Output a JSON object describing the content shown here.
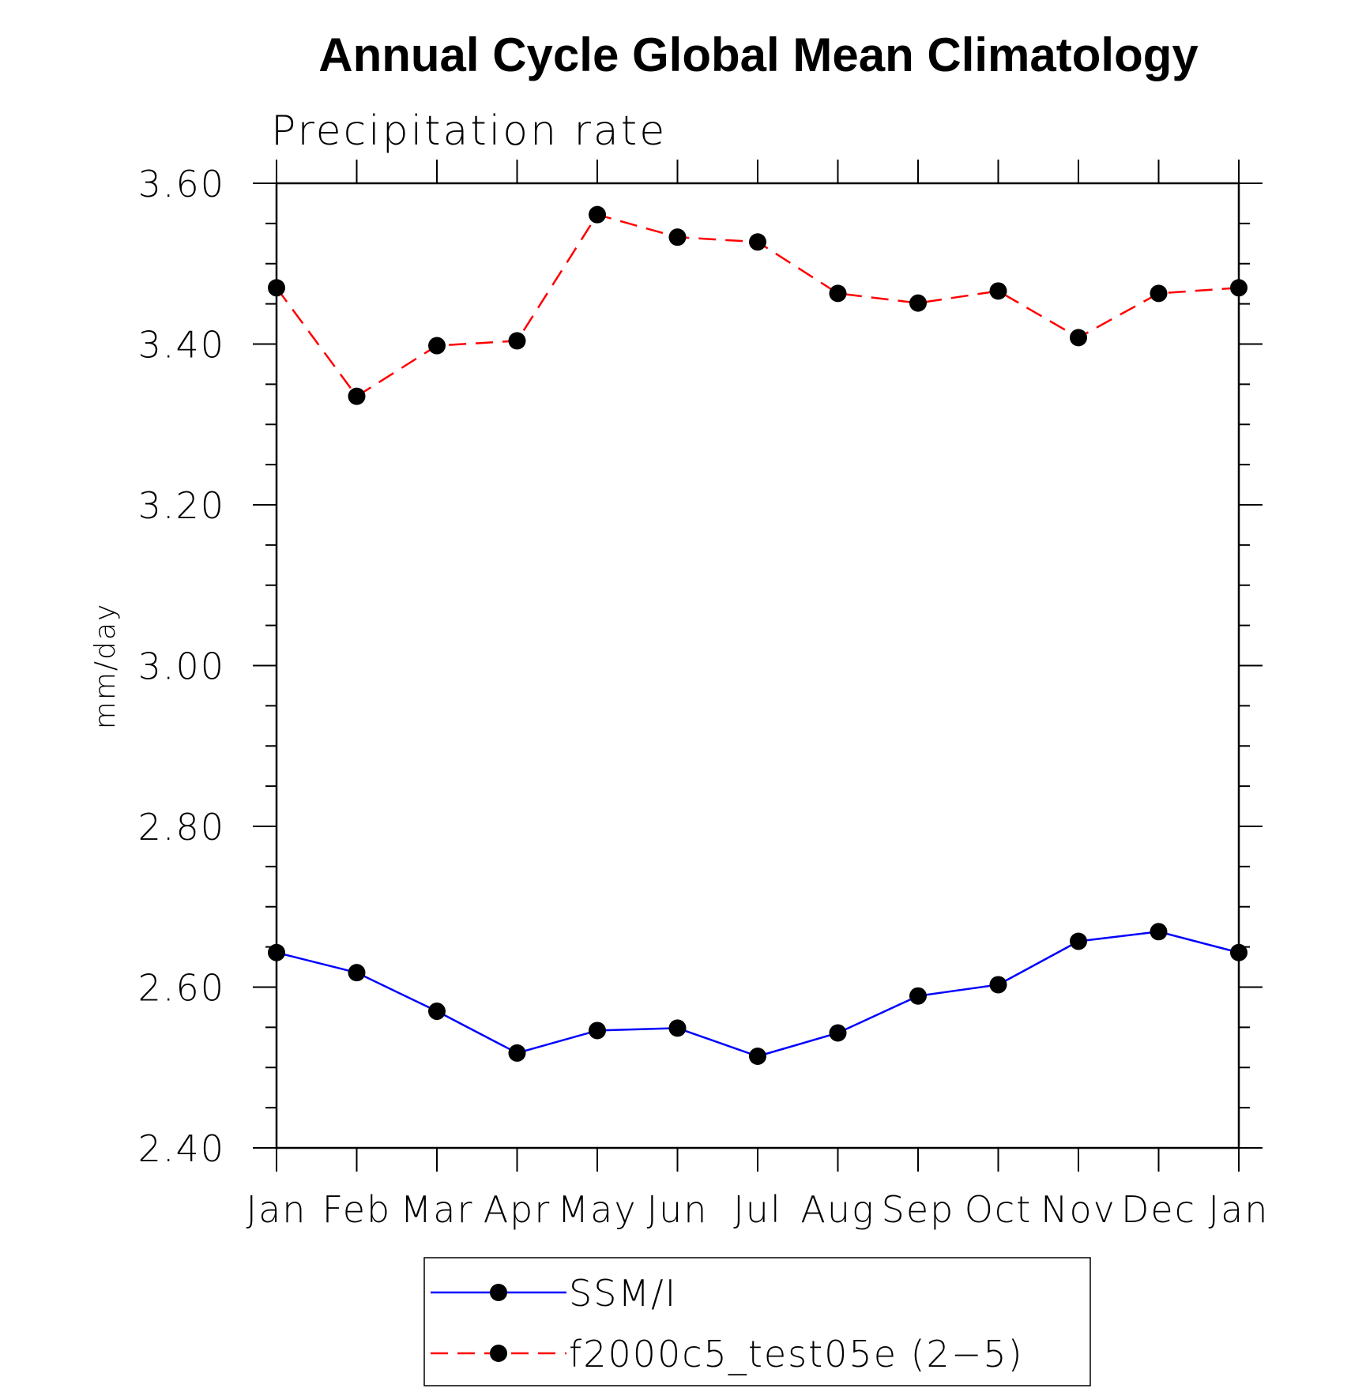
{
  "chart_data": {
    "type": "line",
    "title": "Annual Cycle Global Mean Climatology",
    "subtitle": "Precipitation rate",
    "xlabel": "",
    "ylabel": "mm/day",
    "categories": [
      "Jan",
      "Feb",
      "Mar",
      "Apr",
      "May",
      "Jun",
      "Jul",
      "Aug",
      "Sep",
      "Oct",
      "Nov",
      "Dec",
      "Jan"
    ],
    "ylim": [
      2.4,
      3.6
    ],
    "yticks": [
      "3.60",
      "3.40",
      "3.20",
      "3.00",
      "2.80",
      "2.60",
      "2.40"
    ],
    "grid": false,
    "legend_position": "bottom",
    "series": [
      {
        "name": "SSM/I",
        "color": "#0000ff",
        "line_style": "solid",
        "marker": "filled-circle",
        "values": [
          2.643,
          2.618,
          2.57,
          2.518,
          2.546,
          2.549,
          2.514,
          2.543,
          2.589,
          2.603,
          2.657,
          2.669,
          2.643
        ]
      },
      {
        "name": "f2000c5_test05e (2−5)",
        "color": "#ff0000",
        "line_style": "dashed",
        "marker": "filled-circle",
        "values": [
          3.47,
          3.335,
          3.398,
          3.404,
          3.561,
          3.533,
          3.527,
          3.463,
          3.451,
          3.466,
          3.408,
          3.463,
          3.47
        ]
      }
    ]
  }
}
